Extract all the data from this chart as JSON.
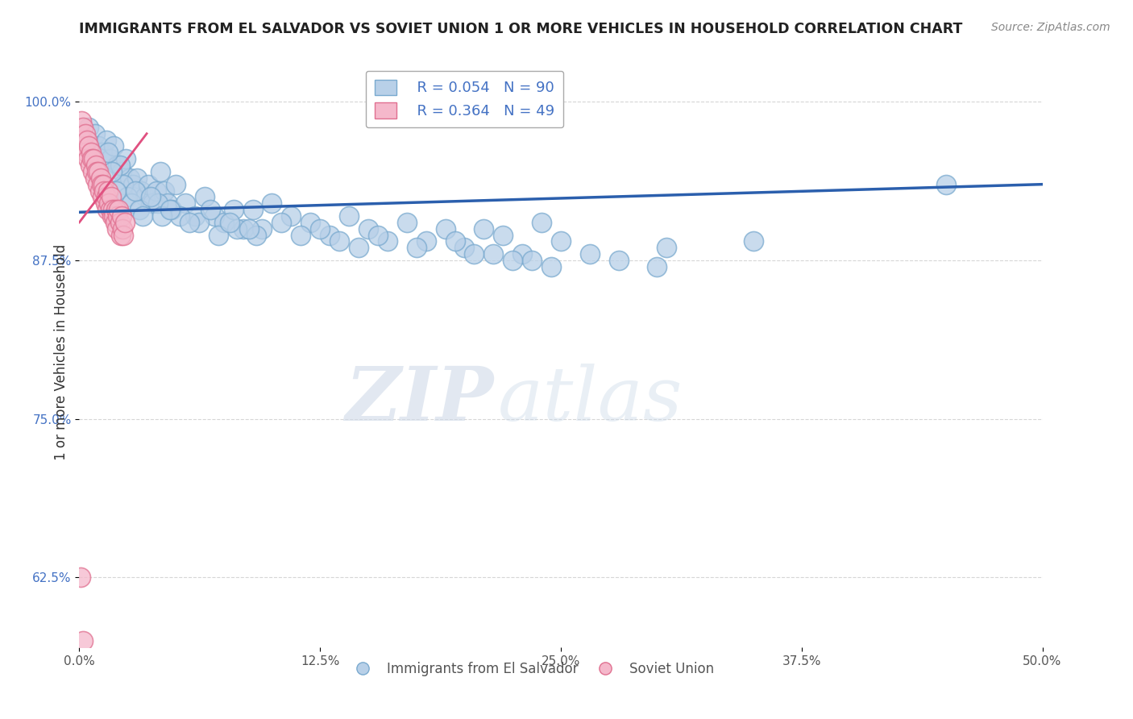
{
  "title": "IMMIGRANTS FROM EL SALVADOR VS SOVIET UNION 1 OR MORE VEHICLES IN HOUSEHOLD CORRELATION CHART",
  "source": "Source: ZipAtlas.com",
  "ylabel": "1 or more Vehicles in Household",
  "xlim": [
    0.0,
    50.0
  ],
  "ylim": [
    57.0,
    103.5
  ],
  "yticks": [
    62.5,
    75.0,
    87.5,
    100.0
  ],
  "xticks": [
    0.0,
    12.5,
    25.0,
    37.5,
    50.0
  ],
  "blue_label": "Immigrants from El Salvador",
  "pink_label": "Soviet Union",
  "blue_R": 0.054,
  "blue_N": 90,
  "pink_R": 0.364,
  "pink_N": 49,
  "blue_color": "#b8d0e8",
  "blue_edge": "#7aaacf",
  "pink_color": "#f5b8cb",
  "pink_edge": "#e07090",
  "blue_line_color": "#2b5fad",
  "pink_line_color": "#e05080",
  "watermark_zip": "ZIP",
  "watermark_atlas": "atlas",
  "blue_x": [
    0.5,
    0.8,
    1.0,
    1.2,
    1.4,
    1.6,
    1.8,
    2.0,
    2.2,
    2.4,
    2.6,
    2.8,
    3.0,
    3.2,
    3.4,
    3.6,
    3.8,
    4.0,
    4.2,
    4.4,
    4.6,
    4.8,
    5.0,
    5.5,
    6.0,
    6.5,
    7.0,
    7.5,
    8.0,
    8.5,
    9.0,
    9.5,
    10.0,
    11.0,
    12.0,
    13.0,
    14.0,
    15.0,
    16.0,
    17.0,
    18.0,
    19.0,
    20.0,
    21.0,
    22.0,
    23.0,
    24.0,
    25.0,
    26.5,
    28.0,
    30.0,
    2.1,
    2.3,
    2.5,
    2.7,
    3.1,
    3.3,
    1.5,
    1.7,
    1.9,
    2.9,
    4.1,
    5.2,
    6.2,
    7.2,
    8.2,
    9.2,
    10.5,
    11.5,
    12.5,
    13.5,
    14.5,
    15.5,
    17.5,
    19.5,
    21.5,
    23.5,
    3.7,
    4.3,
    6.8,
    7.8,
    8.8,
    5.7,
    4.7,
    20.5,
    22.5,
    24.5,
    45.0,
    35.0,
    30.5
  ],
  "blue_y": [
    98.0,
    97.5,
    96.5,
    96.0,
    97.0,
    95.5,
    96.5,
    95.0,
    94.5,
    95.5,
    94.0,
    93.5,
    94.0,
    93.0,
    92.5,
    93.5,
    92.0,
    93.0,
    94.5,
    93.0,
    92.0,
    91.5,
    93.5,
    92.0,
    91.0,
    92.5,
    91.0,
    90.5,
    91.5,
    90.0,
    91.5,
    90.0,
    92.0,
    91.0,
    90.5,
    89.5,
    91.0,
    90.0,
    89.0,
    90.5,
    89.0,
    90.0,
    88.5,
    90.0,
    89.5,
    88.0,
    90.5,
    89.0,
    88.0,
    87.5,
    87.0,
    95.0,
    93.5,
    92.5,
    92.0,
    91.5,
    91.0,
    96.0,
    94.5,
    93.0,
    93.0,
    92.0,
    91.0,
    90.5,
    89.5,
    90.0,
    89.5,
    90.5,
    89.5,
    90.0,
    89.0,
    88.5,
    89.5,
    88.5,
    89.0,
    88.0,
    87.5,
    92.5,
    91.0,
    91.5,
    90.5,
    90.0,
    90.5,
    91.5,
    88.0,
    87.5,
    87.0,
    93.5,
    89.0,
    88.5
  ],
  "pink_x": [
    0.05,
    0.1,
    0.15,
    0.2,
    0.25,
    0.3,
    0.35,
    0.4,
    0.45,
    0.5,
    0.55,
    0.6,
    0.65,
    0.7,
    0.75,
    0.8,
    0.85,
    0.9,
    0.95,
    1.0,
    1.05,
    1.1,
    1.15,
    1.2,
    1.25,
    1.3,
    1.35,
    1.4,
    1.45,
    1.5,
    1.55,
    1.6,
    1.65,
    1.7,
    1.75,
    1.8,
    1.85,
    1.9,
    1.95,
    2.0,
    2.05,
    2.1,
    2.15,
    2.2,
    2.25,
    2.3,
    2.35,
    0.08,
    0.18
  ],
  "pink_y": [
    97.5,
    98.5,
    97.0,
    98.0,
    96.5,
    97.5,
    96.0,
    97.0,
    95.5,
    96.5,
    95.0,
    96.0,
    95.5,
    94.5,
    95.5,
    94.0,
    95.0,
    94.5,
    93.5,
    94.5,
    93.0,
    94.0,
    93.5,
    92.5,
    93.5,
    93.0,
    92.0,
    92.5,
    91.5,
    93.0,
    92.0,
    91.5,
    92.5,
    91.0,
    91.5,
    91.0,
    90.5,
    91.5,
    90.0,
    91.0,
    91.5,
    90.5,
    89.5,
    91.0,
    90.0,
    89.5,
    90.5,
    62.5,
    57.5
  ],
  "blue_trend_x": [
    0.0,
    50.0
  ],
  "blue_trend_y": [
    91.3,
    93.5
  ],
  "pink_trend_x": [
    0.0,
    3.5
  ],
  "pink_trend_y": [
    90.5,
    97.5
  ]
}
